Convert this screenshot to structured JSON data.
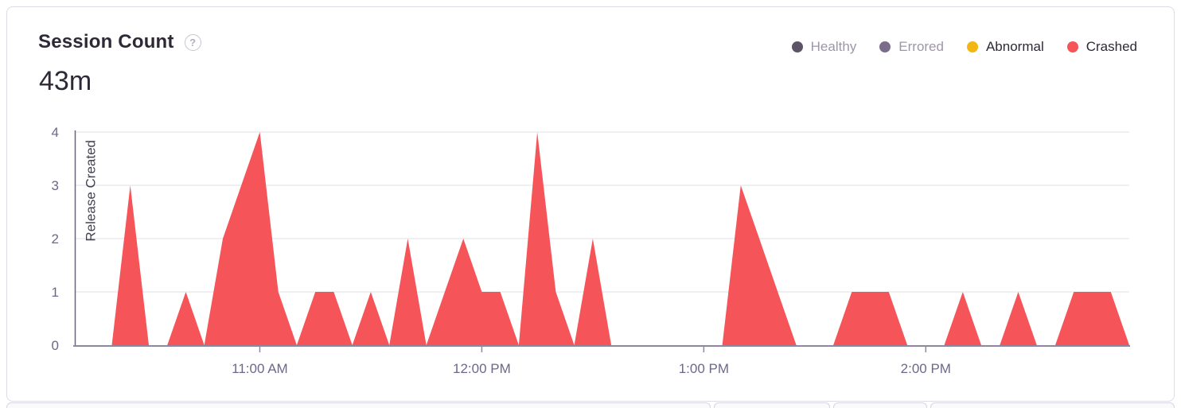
{
  "card": {
    "title": "Session Count",
    "help_icon": "?",
    "value": "43m"
  },
  "legend": {
    "items": [
      {
        "label": "Healthy",
        "dot_color": "#5e5468",
        "muted": true
      },
      {
        "label": "Errored",
        "dot_color": "#7a6d8c",
        "muted": true
      },
      {
        "label": "Abnormal",
        "dot_color": "#f2b712",
        "muted": false
      },
      {
        "label": "Crashed",
        "dot_color": "#f55459",
        "muted": false
      }
    ]
  },
  "colors": {
    "crashed_fill": "#f55459",
    "axis_text": "#6f6789",
    "axis_line": "#8d87a0",
    "gridline": "#f0eff4",
    "release_line": "#6b6577",
    "release_text": "#454050",
    "legend_text": "#2f2937",
    "legend_muted_text": "#9d96ab",
    "title_text": "#2f2937"
  },
  "chart_data": {
    "type": "area",
    "title": "Session Count",
    "subtitle_total": "43m",
    "xlabel": "",
    "ylabel": "",
    "ylim": [
      0,
      4
    ],
    "y_ticks": [
      0,
      1,
      2,
      3,
      4
    ],
    "grid": "horizontal",
    "legend_position": "top-right",
    "interval_minutes": 5,
    "x": [
      "10:10 AM",
      "10:15 AM",
      "10:20 AM",
      "10:25 AM",
      "10:30 AM",
      "10:35 AM",
      "10:40 AM",
      "10:45 AM",
      "10:50 AM",
      "10:55 AM",
      "11:00 AM",
      "11:05 AM",
      "11:10 AM",
      "11:15 AM",
      "11:20 AM",
      "11:25 AM",
      "11:30 AM",
      "11:35 AM",
      "11:40 AM",
      "11:45 AM",
      "11:50 AM",
      "11:55 AM",
      "12:00 PM",
      "12:05 PM",
      "12:10 PM",
      "12:15 PM",
      "12:20 PM",
      "12:25 PM",
      "12:30 PM",
      "12:35 PM",
      "12:40 PM",
      "12:45 PM",
      "12:50 PM",
      "12:55 PM",
      "1:00 PM",
      "1:05 PM",
      "1:10 PM",
      "1:15 PM",
      "1:20 PM",
      "1:25 PM",
      "1:30 PM",
      "1:35 PM",
      "1:40 PM",
      "1:45 PM",
      "1:50 PM",
      "1:55 PM",
      "2:00 PM",
      "2:05 PM",
      "2:10 PM",
      "2:15 PM",
      "2:20 PM",
      "2:25 PM",
      "2:30 PM",
      "2:35 PM",
      "2:40 PM",
      "2:45 PM",
      "2:50 PM",
      "2:55 PM"
    ],
    "x_ticks": [
      {
        "index": 10,
        "label": "11:00 AM"
      },
      {
        "index": 22,
        "label": "12:00 PM"
      },
      {
        "index": 34,
        "label": "1:00 PM"
      },
      {
        "index": 46,
        "label": "2:00 PM"
      }
    ],
    "series": [
      {
        "name": "Crashed",
        "color": "#f55459",
        "values": [
          0,
          0,
          0,
          3,
          0,
          0,
          1,
          0,
          2,
          3,
          4,
          1,
          0,
          1,
          1,
          0,
          1,
          0,
          2,
          0,
          1,
          2,
          1,
          1,
          0,
          4,
          1,
          0,
          2,
          0,
          0,
          0,
          0,
          0,
          0,
          0,
          3,
          2,
          1,
          0,
          0,
          0,
          1,
          1,
          1,
          0,
          0,
          0,
          1,
          0,
          0,
          1,
          0,
          0,
          1,
          1,
          1,
          0
        ]
      }
    ],
    "annotation": {
      "label": "Release Created",
      "x_index": 0
    }
  }
}
